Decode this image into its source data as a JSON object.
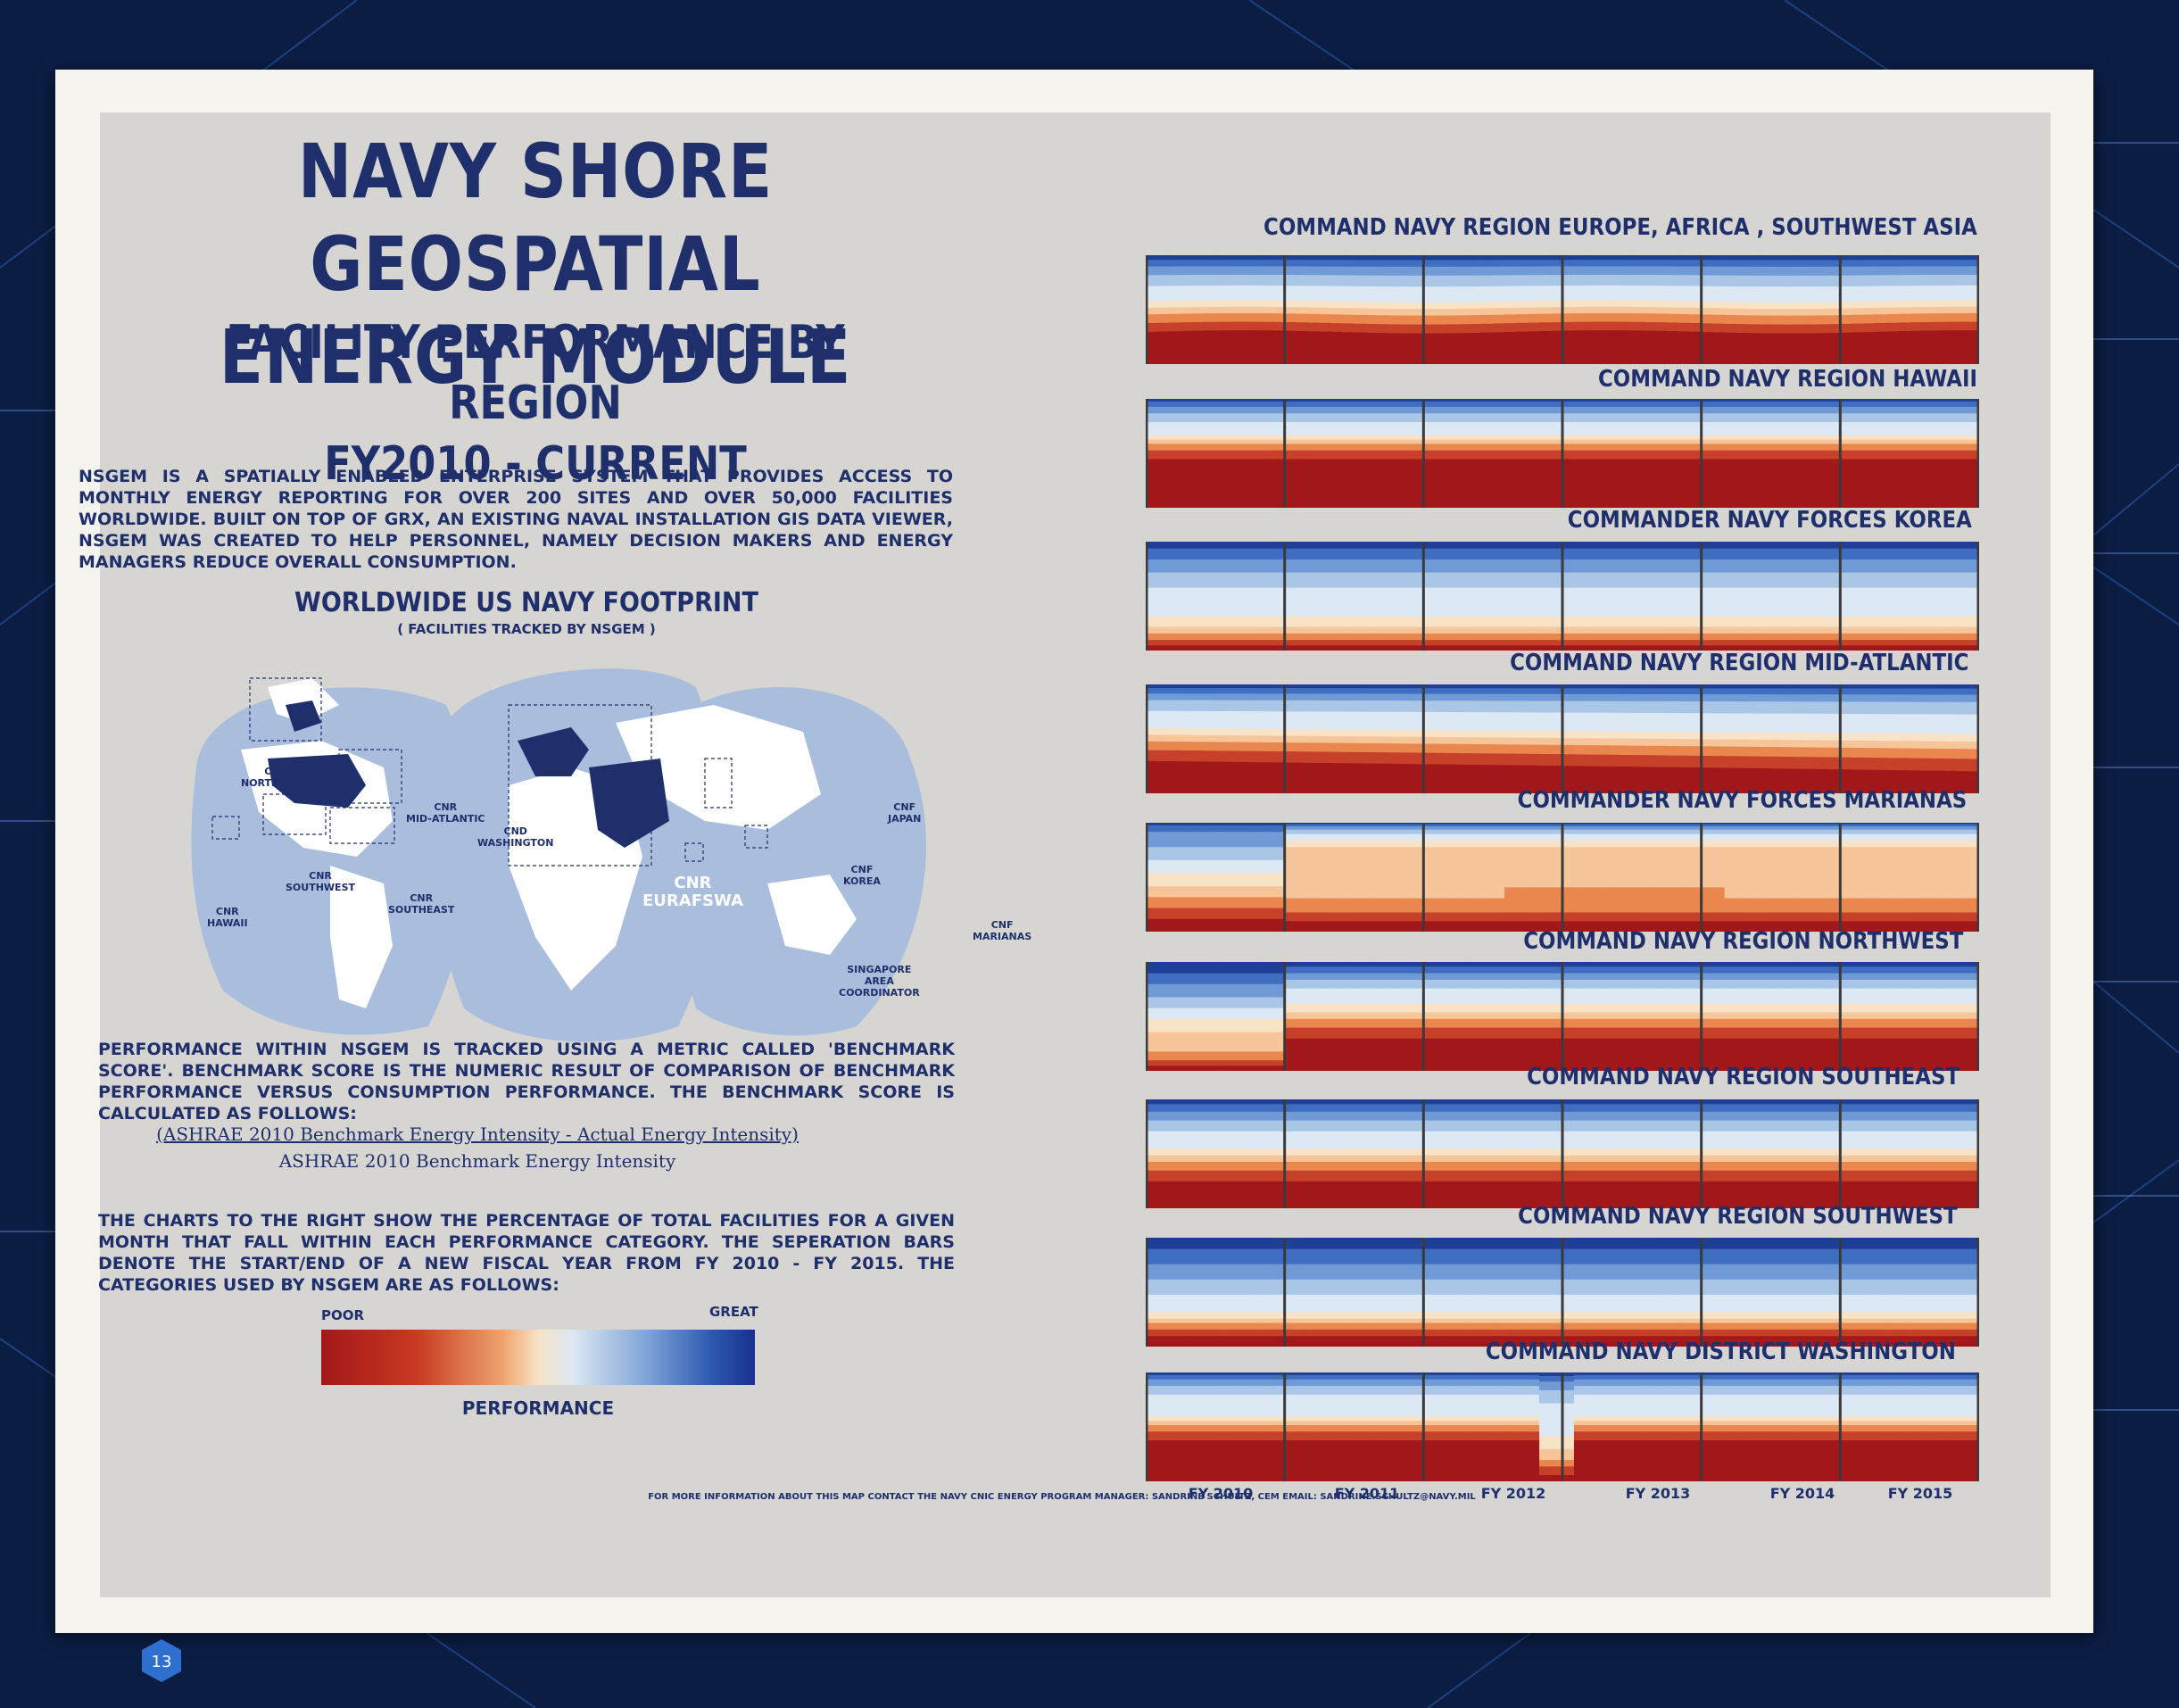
{
  "poster": {
    "title": "NAVY SHORE GEOSPATIAL ENERGY MODULE",
    "subtitle_line1": "FACILITY PERFORMANCE BY REGION",
    "subtitle_line2": "FY2010 - CURRENT",
    "intro": "NSGEM is a spatially enabled enterprise system that provides access to monthly energy reporting for over 200 sites and over 50,000 facilities worldwide. Built on top of GRX, an existing naval installation GIS data viewer, NSGEM was created to help personnel, namely decision makers and energy managers reduce overall consumption.",
    "map_title": "WORLDWIDE US NAVY FOOTPRINT",
    "map_subtitle": "( FACILITIES TRACKED BY NSGEM )",
    "map_labels": {
      "cnr_northwest": "CNR\nNORTHWEST",
      "cnr_mid_atlantic": "CNR\nMID-ATLANTIC",
      "cnd_washington": "CND\nWASHINGTON",
      "cnr_southwest": "CNR\nSOUTHWEST",
      "cnr_southeast": "CNR\nSOUTHEAST",
      "cnr_hawaii": "CNR\nHAWAII",
      "cnr_eurafswa": "CNR\nEURAFSWA",
      "cnf_japan": "CNF\nJAPAN",
      "cnf_korea": "CNF\nKOREA",
      "cnf_marianas": "CNF\nMARIANAS",
      "singapore": "SINGAPORE\nAREA\nCOORDINATOR"
    },
    "performance_text": "Performance within NSGEM is tracked using a metric called 'Benchmark Score'. Benchmark Score is the numeric result of comparison of Benchmark performance versus Consumption performance. The Benchmark Score is calculated as follows:",
    "formula_numerator": "(ASHRAE 2010 Benchmark Energy Intensity - Actual Energy Intensity)",
    "formula_denominator": "ASHRAE 2010 Benchmark Energy Intensity",
    "charts_text": "The charts to the right show the percentage of total facilities for a given month that fall within each performance category. The seperation bars denote the start/end of a new fiscal year from FY 2010 - FY 2015. The categories used by NSGEM are as follows:",
    "legend_poor": "POOR",
    "legend_great": "GREAT",
    "legend_label": "PERFORMANCE",
    "footer": "FOR MORE INFORMATION ABOUT THIS MAP CONTACT THE NAVY CNIC ENERGY PROGRAM MANAGER: SANDRINE SCHULTZ, CEM  EMAIL: SANDRINE.SCHULTZ@NAVY.MIL",
    "page_number": "13"
  },
  "regions": [
    {
      "title": "COMMAND NAVY REGION EUROPE, AFRICA , SOUTHWEST ASIA",
      "profile": "europe"
    },
    {
      "title": "COMMAND NAVY REGION HAWAII",
      "profile": "hawaii"
    },
    {
      "title": "COMMANDER NAVY FORCES KOREA",
      "profile": "korea"
    },
    {
      "title": "COMMAND NAVY REGION MID-ATLANTIC",
      "profile": "midatl"
    },
    {
      "title": "COMMANDER NAVY FORCES MARIANAS",
      "profile": "marianas"
    },
    {
      "title": "COMMAND NAVY REGION NORTHWEST",
      "profile": "northwest"
    },
    {
      "title": "COMMAND NAVY REGION SOUTHEAST",
      "profile": "southeast"
    },
    {
      "title": "COMMAND NAVY REGION SOUTHWEST",
      "profile": "southwest"
    },
    {
      "title": "COMMAND NAVY DISTRICT WASHINGTON",
      "profile": "washington"
    }
  ],
  "fiscal_years": [
    "FY 2010",
    "FY 2011",
    "FY 2012",
    "FY 2013",
    "FY 2014",
    "FY 2015"
  ],
  "colors": {
    "navy_text": "#1f2f6b",
    "poor": "#a2181a",
    "great": "#1a2f8f",
    "bands": [
      "#a2181a",
      "#c7402a",
      "#e9874f",
      "#f6c59a",
      "#f8e3c6",
      "#dce8f3",
      "#aac6e6",
      "#6f9ad6",
      "#3f6ec0",
      "#1f3f97"
    ]
  }
}
